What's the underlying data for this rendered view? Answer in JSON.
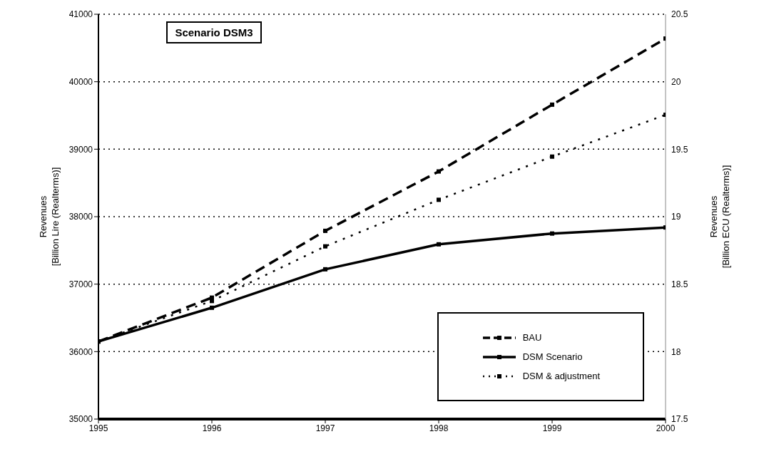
{
  "chart_data": {
    "type": "line",
    "title": "Scenario DSM3",
    "ylabel": "Revenues\n[Billion Lire (Realterms)]",
    "y2label": "Revenues\n[Billion ECU (Realterms)]",
    "x": [
      1995,
      1996,
      1997,
      1998,
      1999,
      2000
    ],
    "series": [
      {
        "name": "BAU",
        "color": "#000000",
        "line_style": "dashed",
        "values": [
          36150,
          36800,
          37790,
          38670,
          39660,
          40640
        ]
      },
      {
        "name": "DSM Scenario",
        "color": "#000000",
        "line_style": "solid",
        "values": [
          36150,
          36650,
          37220,
          37590,
          37750,
          37840
        ]
      },
      {
        "name": "DSM & adjustment",
        "color": "#000000",
        "line_style": "dotted",
        "values": [
          36150,
          36750,
          37560,
          38250,
          38890,
          39510
        ]
      }
    ],
    "xlim": [
      1995,
      2000
    ],
    "xticks": [
      1995,
      1996,
      1997,
      1998,
      1999,
      2000
    ],
    "ylim": [
      35000,
      41000
    ],
    "yticks": [
      35000,
      36000,
      37000,
      38000,
      39000,
      40000,
      41000
    ],
    "y2lim": [
      17.5,
      20.5
    ],
    "y2ticks": [
      17.5,
      18,
      18.5,
      19,
      19.5,
      20,
      20.5
    ],
    "grid": "y",
    "legend": "bottom right",
    "marker": "square"
  }
}
